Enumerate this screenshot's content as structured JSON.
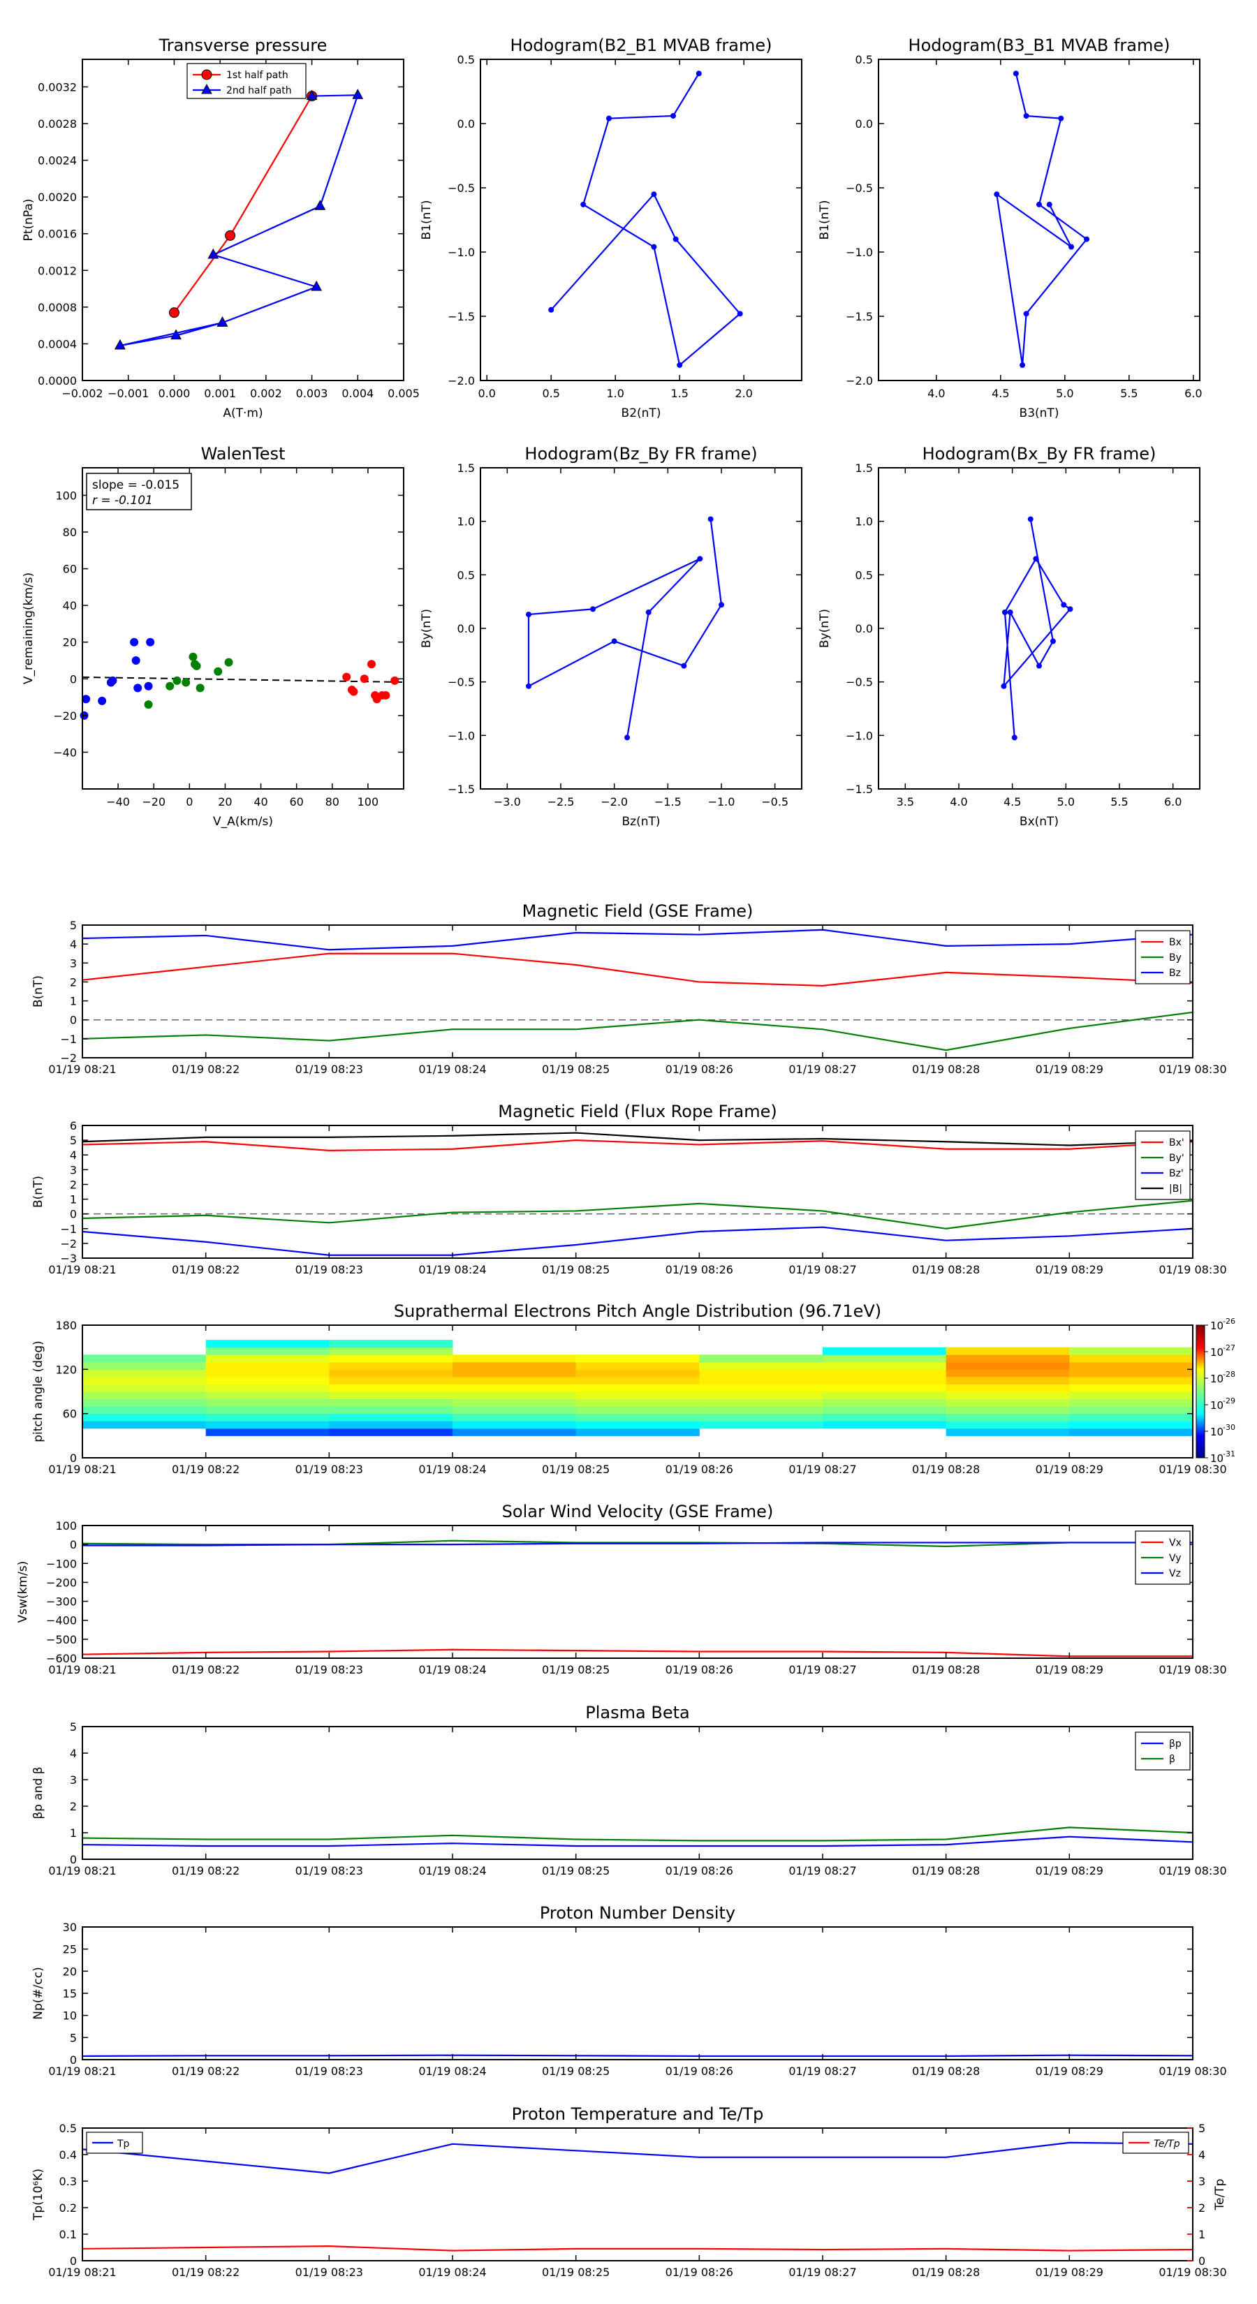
{
  "time_ticks": [
    "01/19 08:21",
    "01/19 08:22",
    "01/19 08:23",
    "01/19 08:24",
    "01/19 08:25",
    "01/19 08:26",
    "01/19 08:27",
    "01/19 08:28",
    "01/19 08:29",
    "01/19 08:30"
  ],
  "colors": {
    "red": "#ff0000",
    "green": "#008000",
    "blue": "#0000ff",
    "black": "#000000",
    "dash": "#666666"
  },
  "chart_data": [
    {
      "id": "tp",
      "type": "line",
      "title": "Transverse pressure",
      "xlabel": "A(T·m)",
      "ylabel": "Pt(nPa)",
      "xlim": [
        -0.002,
        0.005
      ],
      "ylim": [
        0,
        0.0035
      ],
      "xticks": [
        "−0.002",
        "−0.001",
        "0.000",
        "0.001",
        "0.002",
        "0.003",
        "0.004",
        "0.005"
      ],
      "yticks": [
        "0.0000",
        "0.0004",
        "0.0008",
        "0.0012",
        "0.0016",
        "0.0020",
        "0.0024",
        "0.0028",
        "0.0032"
      ],
      "legend": {
        "position": "top-center",
        "entries": [
          "1st half path",
          "2nd half path"
        ]
      },
      "series": [
        {
          "name": "1st half path",
          "color": "red",
          "marker": "circle",
          "x": [
            0.0,
            0.00122,
            0.003
          ],
          "y": [
            0.00074,
            0.00158,
            0.0031
          ]
        },
        {
          "name": "2nd half path",
          "color": "blue",
          "marker": "triangle",
          "x": [
            0.003,
            0.004,
            0.00318,
            0.00085,
            0.0031,
            0.00105,
            4e-05,
            -0.00118
          ],
          "y": [
            0.0031,
            0.00311,
            0.0019,
            0.00137,
            0.00102,
            0.00063,
            0.00049,
            0.00038
          ]
        },
        {
          "name": "",
          "color": "blue",
          "marker": "triangle",
          "x": [
            -0.00118,
            0.00105
          ],
          "y": [
            0.00038,
            0.00063
          ]
        }
      ]
    },
    {
      "id": "h1",
      "type": "line",
      "title": "Hodogram(B2_B1 MVAB frame)",
      "xlabel": "B2(nT)",
      "ylabel": "B1(nT)",
      "xlim": [
        -0.05,
        2.45
      ],
      "ylim": [
        -2.0,
        0.5
      ],
      "xticks": [
        "0.0",
        "0.5",
        "1.0",
        "1.5",
        "2.0"
      ],
      "yticks": [
        "−2.0",
        "−1.5",
        "−1.0",
        "−0.5",
        "0.0",
        "0.5"
      ],
      "series": [
        {
          "name": "",
          "color": "blue",
          "marker": "dot",
          "x": [
            1.65,
            1.45,
            0.95,
            0.75,
            1.3,
            1.5,
            1.97,
            1.47,
            1.3,
            0.5
          ],
          "y": [
            0.39,
            0.06,
            0.04,
            -0.63,
            -0.96,
            -1.88,
            -1.48,
            -0.9,
            -0.55,
            -1.45
          ]
        }
      ]
    },
    {
      "id": "h2",
      "type": "line",
      "title": "Hodogram(B3_B1 MVAB frame)",
      "xlabel": "B3(nT)",
      "ylabel": "B1(nT)",
      "xlim": [
        3.55,
        6.05
      ],
      "ylim": [
        -2.0,
        0.5
      ],
      "xticks": [
        "4.0",
        "4.5",
        "5.0",
        "5.5",
        "6.0"
      ],
      "yticks": [
        "−2.0",
        "−1.5",
        "−1.0",
        "−0.5",
        "0.0",
        "0.5"
      ],
      "series": [
        {
          "name": "",
          "color": "blue",
          "marker": "dot",
          "x": [
            4.62,
            4.7,
            4.97,
            4.8,
            5.17,
            4.7,
            4.67,
            4.47,
            5.05,
            4.88
          ],
          "y": [
            0.39,
            0.06,
            0.04,
            -0.63,
            -0.9,
            -1.48,
            -1.88,
            -0.55,
            -0.96,
            -0.63
          ]
        }
      ]
    },
    {
      "id": "walen",
      "type": "scatter",
      "title": "WalenTest",
      "xlabel": "V_A(km/s)",
      "ylabel": "V_remaining(km/s)",
      "xlim": [
        -60,
        120
      ],
      "ylim": [
        -60,
        115
      ],
      "xticks": [
        "−40",
        "−20",
        "0",
        "20",
        "40",
        "60",
        "80",
        "100"
      ],
      "yticks": [
        "−40",
        "−20",
        "0",
        "20",
        "40",
        "60",
        "80",
        "100"
      ],
      "annotation": [
        "slope = -0.015",
        "r = -0.101"
      ],
      "fit": {
        "slope": -0.015,
        "intercept": 0
      },
      "series": [
        {
          "name": "",
          "color": "blue",
          "x": [
            -59,
            -58,
            -49,
            -44,
            -43,
            -31,
            -30,
            -29,
            -23,
            -22
          ],
          "y": [
            -20,
            -11,
            -12,
            -2,
            -1,
            20,
            10,
            -5,
            -4,
            20
          ]
        },
        {
          "name": "",
          "color": "green",
          "x": [
            -23,
            -11,
            -7,
            -2,
            2,
            3,
            4,
            6,
            16,
            22
          ],
          "y": [
            -14,
            -4,
            -1,
            -2,
            12,
            8,
            7,
            -5,
            4,
            9
          ]
        },
        {
          "name": "",
          "color": "red",
          "x": [
            88,
            91,
            92,
            98,
            102,
            104,
            105,
            108,
            110,
            115
          ],
          "y": [
            1,
            -6,
            -7,
            0,
            8,
            -9,
            -11,
            -9,
            -9,
            -1
          ]
        }
      ]
    },
    {
      "id": "h3",
      "type": "line",
      "title": "Hodogram(Bz_By FR frame)",
      "xlabel": "Bz(nT)",
      "ylabel": "By(nT)",
      "xlim": [
        -3.25,
        -0.25
      ],
      "ylim": [
        -1.5,
        1.5
      ],
      "xticks": [
        "−3.0",
        "−2.5",
        "−2.0",
        "−1.5",
        "−1.0",
        "−0.5"
      ],
      "yticks": [
        "−1.5",
        "−1.0",
        "−0.5",
        "0.0",
        "0.5",
        "1.0",
        "1.5"
      ],
      "series": [
        {
          "name": "",
          "color": "blue",
          "marker": "dot",
          "x": [
            -1.1,
            -1.0,
            -1.35,
            -2.0,
            -2.8,
            -2.8,
            -2.2,
            -1.2,
            -1.68,
            -1.88
          ],
          "y": [
            1.02,
            0.22,
            -0.35,
            -0.12,
            -0.54,
            0.13,
            0.18,
            0.65,
            0.15,
            -1.02
          ]
        }
      ]
    },
    {
      "id": "h4",
      "type": "line",
      "title": "Hodogram(Bx_By FR frame)",
      "xlabel": "Bx(nT)",
      "ylabel": "By(nT)",
      "xlim": [
        3.25,
        6.25
      ],
      "ylim": [
        -1.5,
        1.5
      ],
      "xticks": [
        "3.5",
        "4.0",
        "4.5",
        "5.0",
        "5.5",
        "6.0"
      ],
      "yticks": [
        "−1.5",
        "−1.0",
        "−0.5",
        "0.0",
        "0.5",
        "1.0",
        "1.5"
      ],
      "series": [
        {
          "name": "",
          "color": "blue",
          "marker": "dot",
          "x": [
            4.67,
            4.88,
            4.75,
            4.48,
            4.42,
            5.04,
            4.98,
            4.72,
            4.43,
            4.52
          ],
          "y": [
            1.02,
            -0.12,
            -0.35,
            0.15,
            -0.54,
            0.18,
            0.22,
            0.65,
            0.15,
            -1.02
          ]
        }
      ]
    },
    {
      "id": "mfgse",
      "type": "line",
      "title": "Magnetic Field (GSE Frame)",
      "ylabel": "B(nT)",
      "ylim": [
        -2,
        5
      ],
      "yticks": [
        "−2",
        "−1",
        "0",
        "1",
        "2",
        "3",
        "4",
        "5"
      ],
      "zero_line": true,
      "legend": {
        "position": "right",
        "entries": [
          "Bx",
          "By",
          "Bz"
        ]
      },
      "series": [
        {
          "name": "Bx",
          "color": "red",
          "values": [
            2.1,
            2.8,
            3.5,
            3.5,
            2.9,
            2.0,
            1.8,
            2.5,
            2.25,
            1.95
          ]
        },
        {
          "name": "By",
          "color": "green",
          "values": [
            -1.0,
            -0.8,
            -1.1,
            -0.5,
            -0.5,
            0.0,
            -0.5,
            -1.6,
            -0.45,
            0.4
          ]
        },
        {
          "name": "Bz",
          "color": "blue",
          "values": [
            4.3,
            4.45,
            3.7,
            3.9,
            4.6,
            4.5,
            4.75,
            3.9,
            4.0,
            4.5
          ]
        }
      ]
    },
    {
      "id": "mffr",
      "type": "line",
      "title": "Magnetic Field (Flux Rope Frame)",
      "ylabel": "B(nT)",
      "ylim": [
        -3,
        6
      ],
      "yticks": [
        "−3",
        "−2",
        "−1",
        "0",
        "1",
        "2",
        "3",
        "4",
        "5",
        "6"
      ],
      "zero_line": true,
      "legend": {
        "position": "right",
        "entries": [
          "Bx'",
          "By'",
          "Bz'",
          "|B|"
        ]
      },
      "series": [
        {
          "name": "Bx'",
          "color": "red",
          "values": [
            4.7,
            4.9,
            4.3,
            4.4,
            5.0,
            4.7,
            4.95,
            4.4,
            4.4,
            4.9
          ]
        },
        {
          "name": "By'",
          "color": "green",
          "values": [
            -0.3,
            -0.1,
            -0.6,
            0.1,
            0.2,
            0.7,
            0.2,
            -1.0,
            0.1,
            0.9
          ]
        },
        {
          "name": "Bz'",
          "color": "blue",
          "values": [
            -1.2,
            -1.9,
            -2.8,
            -2.8,
            -2.1,
            -1.2,
            -0.9,
            -1.8,
            -1.5,
            -1.0
          ]
        },
        {
          "name": "|B|",
          "color": "black",
          "values": [
            4.9,
            5.2,
            5.2,
            5.3,
            5.5,
            5.0,
            5.1,
            4.9,
            4.65,
            4.95
          ]
        }
      ]
    },
    {
      "id": "pad",
      "type": "heatmap",
      "title": "Suprathermal Electrons Pitch Angle Distribution (96.71eV)",
      "ylabel": "pitch angle (deg)",
      "ylim": [
        0,
        180
      ],
      "yticks": [
        "0",
        "60",
        "120",
        "180"
      ],
      "colorbar": {
        "ticks": [
          "10",
          "10",
          "10",
          "10",
          "10",
          "10"
        ],
        "exponents": [
          "-26",
          "-27",
          "-28",
          "-29",
          "-30",
          "-31"
        ]
      },
      "log_values_desc": "log10 flux per column (rows 0..17 = 0-10 deg .. 170-180 deg)",
      "columns": [
        [
          null,
          null,
          null,
          null,
          -29.4,
          -29.0,
          -28.7,
          -28.5,
          -28.3,
          -28.1,
          -28.0,
          -28.1,
          -28.4,
          -28.6,
          null,
          null,
          null,
          null
        ],
        [
          null,
          null,
          null,
          -30.0,
          -29.3,
          -28.9,
          -28.6,
          -28.4,
          -28.2,
          -28.0,
          -27.9,
          -27.8,
          -27.8,
          -28.0,
          -28.5,
          -29.1,
          null,
          null
        ],
        [
          null,
          null,
          null,
          -30.1,
          -29.4,
          -29.0,
          -28.6,
          -28.4,
          -28.1,
          -27.9,
          -27.7,
          -27.6,
          -27.7,
          -27.9,
          -28.3,
          -28.9,
          null,
          null
        ],
        [
          null,
          null,
          null,
          -29.7,
          -29.2,
          -28.8,
          -28.5,
          -28.3,
          -28.1,
          -27.9,
          -27.7,
          -27.5,
          -27.5,
          -27.8,
          null,
          null,
          null,
          null
        ],
        [
          null,
          null,
          null,
          -29.5,
          -29.1,
          -28.7,
          -28.4,
          -28.2,
          -28.0,
          -27.9,
          -27.7,
          -27.6,
          -27.7,
          -27.9,
          null,
          null,
          null,
          null
        ],
        [
          null,
          null,
          null,
          null,
          -29.0,
          -28.7,
          -28.4,
          -28.2,
          -28.0,
          -27.9,
          -27.8,
          -27.8,
          -28.0,
          -28.4,
          null,
          null,
          null,
          null
        ],
        [
          null,
          null,
          null,
          null,
          -29.2,
          -28.8,
          -28.5,
          -28.3,
          -28.1,
          -27.9,
          -27.8,
          -27.8,
          -28.0,
          -28.3,
          -29.1,
          null,
          null,
          null
        ],
        [
          null,
          null,
          null,
          -29.4,
          -29.0,
          -28.7,
          -28.4,
          -28.2,
          -28.0,
          -27.8,
          -27.6,
          -27.4,
          -27.3,
          -27.4,
          -27.7,
          null,
          null,
          null
        ],
        [
          null,
          null,
          null,
          -29.5,
          -29.1,
          -28.8,
          -28.5,
          -28.3,
          -28.1,
          -27.9,
          -27.7,
          -27.5,
          -27.5,
          -27.7,
          -28.2,
          null,
          null,
          null
        ]
      ]
    },
    {
      "id": "vsw",
      "type": "line",
      "title": "Solar Wind Velocity (GSE Frame)",
      "ylabel": "Vsw(km/s)",
      "ylim": [
        -600,
        100
      ],
      "yticks": [
        "−600",
        "−500",
        "−400",
        "−300",
        "−200",
        "−100",
        "0",
        "100"
      ],
      "legend": {
        "position": "right",
        "entries": [
          "Vx",
          "Vy",
          "Vz"
        ]
      },
      "series": [
        {
          "name": "Vx",
          "color": "red",
          "values": [
            -580,
            -570,
            -565,
            -555,
            -560,
            -565,
            -565,
            -570,
            -590,
            -590
          ]
        },
        {
          "name": "Vy",
          "color": "green",
          "values": [
            5,
            0,
            0,
            20,
            10,
            10,
            5,
            -10,
            10,
            10
          ]
        },
        {
          "name": "Vz",
          "color": "blue",
          "values": [
            -5,
            -5,
            0,
            0,
            5,
            5,
            10,
            10,
            10,
            10
          ]
        }
      ]
    },
    {
      "id": "beta",
      "type": "line",
      "title": "Plasma Beta",
      "ylabel": "βp and β",
      "ylim": [
        0,
        5
      ],
      "yticks": [
        "0",
        "1",
        "2",
        "3",
        "4",
        "5"
      ],
      "legend": {
        "position": "right",
        "entries": [
          "βp",
          "β"
        ]
      },
      "series": [
        {
          "name": "βp",
          "color": "blue",
          "values": [
            0.55,
            0.5,
            0.5,
            0.6,
            0.5,
            0.5,
            0.5,
            0.55,
            0.85,
            0.65
          ]
        },
        {
          "name": "β",
          "color": "green",
          "values": [
            0.8,
            0.75,
            0.75,
            0.9,
            0.75,
            0.7,
            0.7,
            0.75,
            1.2,
            1.0
          ]
        }
      ]
    },
    {
      "id": "np",
      "type": "line",
      "title": "Proton Number Density",
      "ylabel": "Np(#/cc)",
      "ylim": [
        0,
        30
      ],
      "yticks": [
        "0",
        "5",
        "10",
        "15",
        "20",
        "25",
        "30"
      ],
      "series": [
        {
          "name": "",
          "color": "blue",
          "values": [
            0.8,
            0.9,
            0.9,
            1.0,
            0.9,
            0.8,
            0.8,
            0.8,
            1.0,
            0.9
          ]
        }
      ]
    },
    {
      "id": "temp",
      "type": "line",
      "title": "Proton Temperature and Te/Tp",
      "ylabel": "Tp(10⁶K)",
      "ylabel2": "Te/Tp",
      "ylim": [
        0,
        0.5
      ],
      "ylim2": [
        0,
        5
      ],
      "yticks": [
        "0",
        "0.1",
        "0.2",
        "0.3",
        "0.4",
        "0.5"
      ],
      "yticks2": [
        "0",
        "1",
        "2",
        "3",
        "4",
        "5"
      ],
      "legend": {
        "left": "Tp",
        "right": "Te/Tp"
      },
      "series": [
        {
          "name": "Tp",
          "color": "blue",
          "axis": "left",
          "values": [
            0.42,
            0.375,
            0.33,
            0.44,
            0.415,
            0.39,
            0.39,
            0.39,
            0.445,
            0.44
          ]
        },
        {
          "name": "Te/Tp",
          "color": "red",
          "axis": "right",
          "values": [
            0.45,
            0.5,
            0.55,
            0.38,
            0.45,
            0.45,
            0.42,
            0.45,
            0.38,
            0.42
          ]
        }
      ]
    }
  ]
}
